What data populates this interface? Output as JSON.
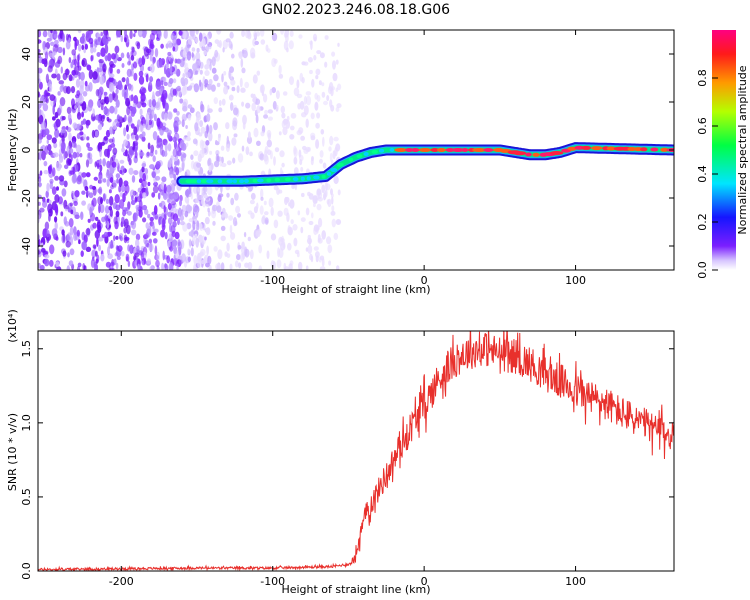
{
  "title": "GN02.2023.246.08.18.G06",
  "chart_data": [
    {
      "type": "heatmap",
      "xlabel": "Height of straight line (km)",
      "ylabel": "Frequency (Hz)",
      "xlim": [
        -255,
        165
      ],
      "ylim": [
        -50,
        50
      ],
      "xticks": [
        -200,
        -100,
        0,
        100
      ],
      "yticks": [
        -40,
        -20,
        0,
        20,
        40
      ],
      "colorbar": {
        "label": "Normalized spectral amplitude",
        "range": [
          0,
          1
        ],
        "ticks": [
          "0.0",
          "0.2",
          "0.4",
          "0.6",
          "0.8"
        ]
      },
      "ridge": {
        "x": [
          -160,
          -120,
          -80,
          -65,
          -55,
          -45,
          -35,
          -25,
          -15,
          0,
          50,
          70,
          80,
          90,
          100,
          165
        ],
        "y": [
          -13,
          -13,
          -12,
          -11,
          -6,
          -3,
          -1,
          0,
          0,
          0,
          0,
          -2,
          -2,
          -1,
          1,
          0
        ]
      },
      "noise_region_x": [
        -255,
        -65
      ]
    },
    {
      "type": "line",
      "xlabel": "Height of straight line (km)",
      "ylabel": "SNR (10 * v/v)",
      "y_multiplier": "(x10⁴)",
      "xlim": [
        -255,
        165
      ],
      "ylim": [
        0,
        1.62
      ],
      "xticks": [
        -200,
        -100,
        0,
        100
      ],
      "yticks": [
        "0.0",
        "0.5",
        "1.0",
        "1.5"
      ],
      "series": [
        {
          "color": "#e8302c",
          "x": [
            -255,
            -200,
            -150,
            -100,
            -60,
            -48,
            -45,
            -42,
            -38,
            -30,
            -20,
            -10,
            0,
            10,
            20,
            30,
            40,
            50,
            60,
            70,
            80,
            90,
            100,
            110,
            120,
            130,
            140,
            150,
            165
          ],
          "y": [
            0.01,
            0.015,
            0.02,
            0.02,
            0.03,
            0.05,
            0.12,
            0.25,
            0.4,
            0.55,
            0.75,
            0.95,
            1.12,
            1.3,
            1.42,
            1.48,
            1.5,
            1.47,
            1.45,
            1.4,
            1.33,
            1.28,
            1.22,
            1.17,
            1.13,
            1.07,
            1.02,
            0.97,
            0.9
          ]
        }
      ]
    }
  ]
}
